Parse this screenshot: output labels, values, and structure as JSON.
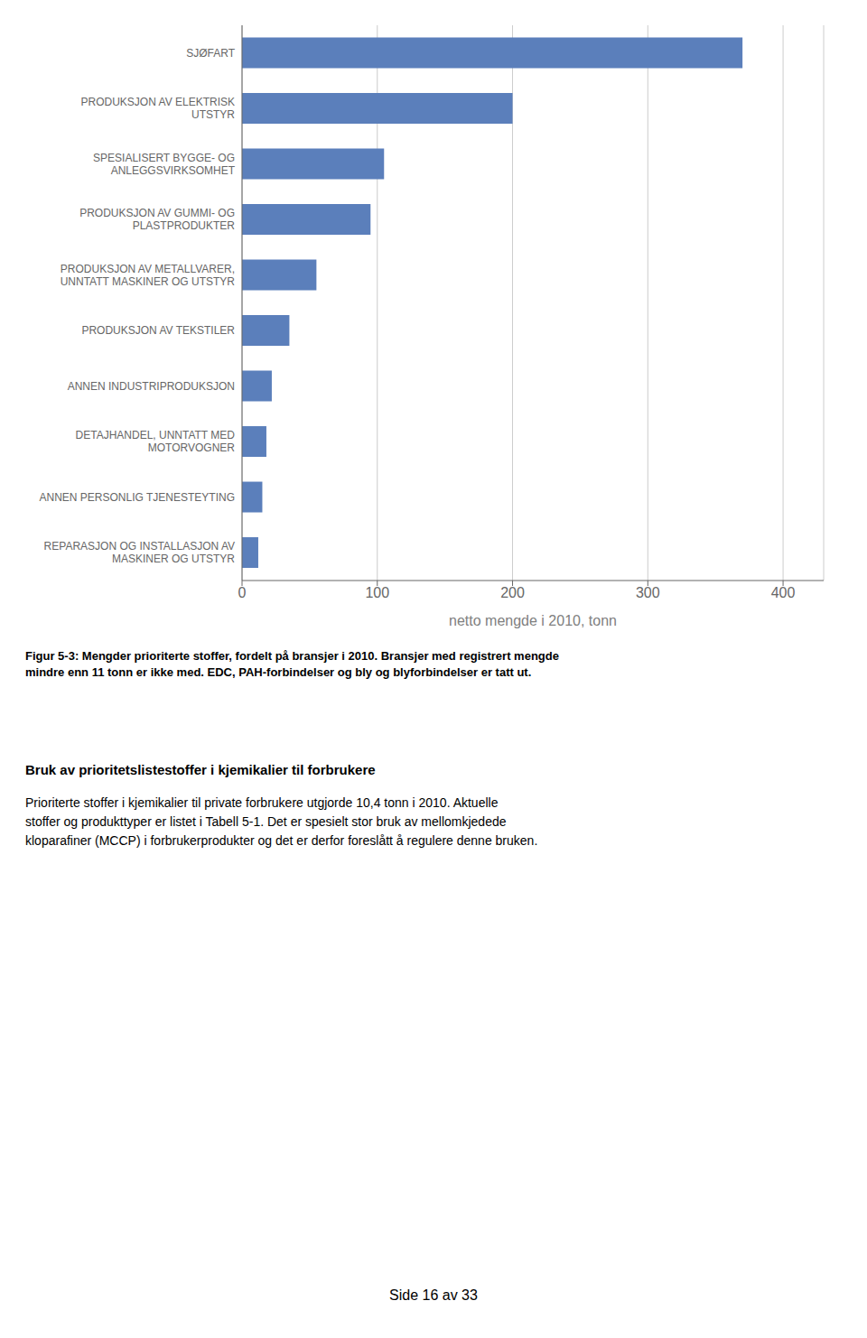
{
  "chart_data": {
    "type": "bar",
    "orientation": "horizontal",
    "categories": [
      "REPARASJON OG INSTALLASJON AV\nMASKINER OG UTSTYR",
      "ANNEN PERSONLIG TJENESTEYTING",
      "DETAJHANDEL, UNNTATT MED\nMOTORVOGNER",
      "ANNEN INDUSTRIPRODUKSJON",
      "PRODUKSJON AV TEKSTILER",
      "PRODUKSJON AV METALLVARER,\nUNNTATT MASKINER OG UTSTYR",
      "PRODUKSJON AV GUMMI- OG\nPLASTPRODUKTER",
      "SPESIALISERT BYGGE- OG\nANLEGGSVIRKSOMHET",
      "PRODUKSJON AV ELEKTRISK\nUTSTYR",
      "SJØFART"
    ],
    "values": [
      12,
      15,
      18,
      22,
      35,
      55,
      95,
      105,
      200,
      370
    ],
    "color": "#5b7fbb",
    "xlabel": "netto mengde i 2010, tonn",
    "xlim": [
      0,
      430
    ],
    "xticks": [
      0,
      100,
      200,
      300,
      400
    ],
    "grid": true,
    "annotations": [
      "Figur 5-3: Mengder prioriterte stoffer, fordelt på bransjer i 2010. Bransjer med registrert mengde\nmindre enn 11 tonn er ikke med.  EDC, PAH-forbindelser og bly og blyforbindelser er tatt ut.",
      "Bruk av prioritetslistestoffer i kjemikalier til forbrukere",
      "Prioriterte stoffer i kjemikalier til private forbrukere utgjorde 10,4 tonn i 2010. Aktuelle\nstoffer og produkttyper er listet i Tabell 5-1. Det er spesielt stor bruk av mellomkjedede\nkloparafiner (MCCP) i forbrukerprodukter og det er derfor foreslått å regulere denne bruken.",
      "Side 16 av 33"
    ]
  }
}
